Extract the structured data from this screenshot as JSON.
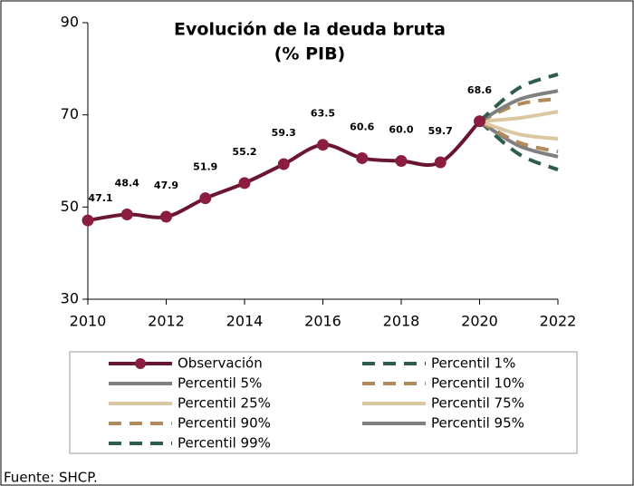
{
  "chart_data": {
    "type": "line",
    "title": [
      "Evolución de la deuda bruta",
      "(% PIB)"
    ],
    "source": "Fuente: SHCP.",
    "xlim": [
      2010,
      2022
    ],
    "xticks": [
      2010,
      2012,
      2014,
      2016,
      2018,
      2020,
      2022
    ],
    "ylim": [
      30,
      90
    ],
    "yticks": [
      30,
      50,
      70,
      90
    ],
    "series": [
      {
        "name": "Observación",
        "color": "#6b1630",
        "width": 4,
        "markers": true,
        "x": [
          2010,
          2011,
          2012,
          2013,
          2014,
          2015,
          2016,
          2017,
          2018,
          2019,
          2020
        ],
        "values": [
          47.1,
          48.4,
          47.9,
          51.9,
          55.2,
          59.3,
          63.5,
          60.6,
          60.0,
          59.7,
          68.6
        ],
        "value_labels": [
          "47.1",
          "48.4",
          "47.9",
          "51.9",
          "55.2",
          "59.3",
          "63.5",
          "60.6",
          "60.0",
          "59.7",
          "68.6"
        ]
      },
      {
        "name": "Percentil 1%",
        "color": "#2e5e4a",
        "width": 4,
        "dashed": true,
        "x": [
          2020,
          2021,
          2022
        ],
        "values": [
          68.6,
          61.5,
          58.1
        ]
      },
      {
        "name": "Percentil 5%",
        "color": "#808080",
        "width": 4,
        "x": [
          2020,
          2021,
          2022
        ],
        "values": [
          68.6,
          63.3,
          60.9
        ]
      },
      {
        "name": "Percentil 10%",
        "color": "#b08a5a",
        "width": 4,
        "dashed": true,
        "x": [
          2020,
          2021,
          2022
        ],
        "values": [
          68.6,
          64.0,
          62.0
        ]
      },
      {
        "name": "Percentil 25%",
        "color": "#dcc7a3",
        "width": 4,
        "x": [
          2020,
          2021,
          2022
        ],
        "values": [
          68.6,
          65.8,
          64.8
        ]
      },
      {
        "name": "Percentil 75%",
        "color": "#dcc7a3",
        "width": 4,
        "x": [
          2020,
          2021,
          2022
        ],
        "values": [
          68.6,
          69.3,
          70.7
        ]
      },
      {
        "name": "Percentil 90%",
        "color": "#b08a5a",
        "width": 4,
        "dashed": true,
        "x": [
          2020,
          2021,
          2022
        ],
        "values": [
          68.6,
          72.3,
          73.5
        ]
      },
      {
        "name": "Percentil 95%",
        "color": "#808080",
        "width": 4,
        "x": [
          2020,
          2021,
          2022
        ],
        "values": [
          68.6,
          73.3,
          75.2
        ]
      },
      {
        "name": "Percentil 99%",
        "color": "#2e5e4a",
        "width": 4,
        "dashed": true,
        "x": [
          2020,
          2021,
          2022
        ],
        "values": [
          68.6,
          75.8,
          78.8
        ]
      }
    ]
  }
}
